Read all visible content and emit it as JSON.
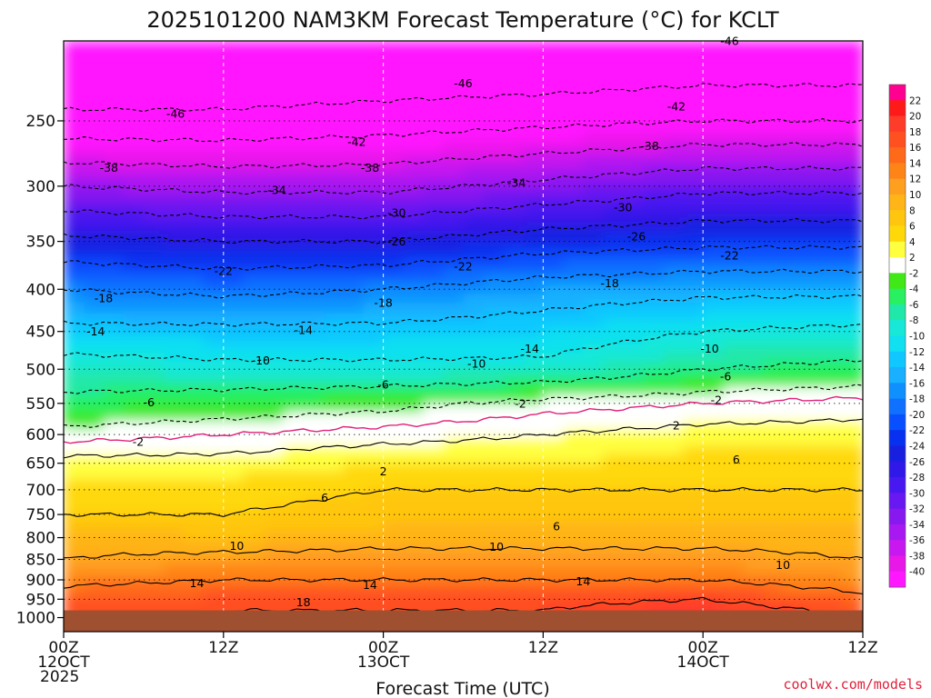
{
  "chart_data": {
    "type": "heatmap",
    "title": "2025101200 NAM3KM Forecast Temperature (°C) for KCLT",
    "xlabel": "Forecast Time (UTC)",
    "ylabel": "",
    "x_range_hours": [
      0,
      60
    ],
    "x_ticks": [
      {
        "hour": 0,
        "lines": [
          "00Z",
          "12OCT",
          "2025"
        ]
      },
      {
        "hour": 12,
        "lines": [
          "12Z"
        ]
      },
      {
        "hour": 24,
        "lines": [
          "00Z",
          "13OCT"
        ]
      },
      {
        "hour": 36,
        "lines": [
          "12Z"
        ]
      },
      {
        "hour": 48,
        "lines": [
          "00Z",
          "14OCT"
        ]
      },
      {
        "hour": 60,
        "lines": [
          "12Z"
        ]
      }
    ],
    "y_axis": {
      "scale": "log-pressure",
      "units": "hPa",
      "range": [
        1040,
        200
      ]
    },
    "y_ticks": [
      250,
      300,
      350,
      400,
      450,
      500,
      550,
      600,
      650,
      700,
      750,
      800,
      850,
      900,
      950,
      1000
    ],
    "ground_level_hpa": 980,
    "colorbar": {
      "tick_labels": [
        "22",
        "20",
        "18",
        "16",
        "14",
        "12",
        "10",
        "8",
        "6",
        "4",
        "2",
        "-2",
        "-4",
        "-6",
        "-8",
        "-10",
        "-12",
        "-14",
        "-16",
        "-18",
        "-20",
        "-22",
        "-24",
        "-26",
        "-28",
        "-30",
        "-32",
        "-34",
        "-36",
        "-38",
        "-40"
      ],
      "colors": [
        "#ff0090",
        "#ff1a1a",
        "#ff3c2a",
        "#ff5020",
        "#ff6a1a",
        "#ff8418",
        "#ff9f20",
        "#ffb418",
        "#ffc610",
        "#ffd80a",
        "#ffff40",
        "#ffffff",
        "#40e818",
        "#28f060",
        "#20e8a8",
        "#18e8d8",
        "#10e0f0",
        "#10c8ff",
        "#18b0ff",
        "#1090ff",
        "#1070ff",
        "#0850ff",
        "#0830f0",
        "#1820e0",
        "#3018e8",
        "#4818f0",
        "#6818f0",
        "#8818f0",
        "#a818f0",
        "#c818f0",
        "#e818e8",
        "#ff18ff"
      ]
    },
    "temperature_profile": {
      "levels_hpa": [
        200,
        250,
        300,
        350,
        400,
        450,
        500,
        550,
        600,
        650,
        700,
        750,
        800,
        850,
        900,
        950,
        980
      ],
      "hours": [
        0,
        12,
        24,
        36,
        48,
        60
      ],
      "values_c": [
        [
          -52,
          -52,
          -52,
          -52,
          -51,
          -51
        ],
        [
          -45,
          -45,
          -44,
          -43,
          -42,
          -42
        ],
        [
          -34,
          -35,
          -35,
          -33,
          -31,
          -31
        ],
        [
          -25,
          -26,
          -26,
          -24,
          -23,
          -23
        ],
        [
          -18,
          -19,
          -18,
          -16,
          -15,
          -15
        ],
        [
          -13,
          -13,
          -13,
          -12,
          -10,
          -9
        ],
        [
          -8,
          -9,
          -9,
          -9,
          -6,
          -5
        ],
        [
          -5,
          -4,
          -3,
          -1,
          0,
          1
        ],
        [
          -1,
          0,
          1,
          2,
          3,
          3
        ],
        [
          3,
          3,
          4,
          4,
          5,
          5
        ],
        [
          5,
          5,
          6,
          6,
          6,
          6
        ],
        [
          6,
          6,
          7,
          7,
          7,
          7
        ],
        [
          9,
          8,
          9,
          9,
          9,
          9
        ],
        [
          10,
          11,
          11,
          11,
          11,
          10
        ],
        [
          13,
          14,
          14,
          14,
          14,
          12
        ],
        [
          16,
          17,
          17,
          17,
          18,
          15
        ],
        [
          17,
          18,
          18,
          18,
          20,
          17
        ]
      ]
    },
    "contours": [
      {
        "value": "-46",
        "style": "dashed",
        "label_at": [
          {
            "h": 8.4,
            "p": 245
          },
          {
            "h": 30.0,
            "p": 225
          },
          {
            "h": 50.0,
            "p": 200
          }
        ]
      },
      {
        "value": "-42",
        "style": "dashed",
        "label_at": [
          {
            "h": 22.0,
            "p": 265
          },
          {
            "h": 46.0,
            "p": 240
          }
        ]
      },
      {
        "value": "-38",
        "style": "dashed",
        "label_at": [
          {
            "h": 3.4,
            "p": 285
          },
          {
            "h": 23.0,
            "p": 285
          },
          {
            "h": 44.0,
            "p": 268
          }
        ]
      },
      {
        "value": "-34",
        "style": "dashed",
        "label_at": [
          {
            "h": 16.0,
            "p": 303
          },
          {
            "h": 34.0,
            "p": 297
          }
        ]
      },
      {
        "value": "-30",
        "style": "dashed",
        "label_at": [
          {
            "h": 25.0,
            "p": 323
          },
          {
            "h": 42.0,
            "p": 318
          }
        ]
      },
      {
        "value": "-26",
        "style": "dashed",
        "label_at": [
          {
            "h": 25.0,
            "p": 350
          },
          {
            "h": 43.0,
            "p": 345
          }
        ]
      },
      {
        "value": "-22",
        "style": "dashed",
        "label_at": [
          {
            "h": 12.0,
            "p": 380
          },
          {
            "h": 30.0,
            "p": 375
          },
          {
            "h": 50.0,
            "p": 364
          }
        ]
      },
      {
        "value": "-18",
        "style": "dashed",
        "label_at": [
          {
            "h": 3.0,
            "p": 410
          },
          {
            "h": 24.0,
            "p": 415
          },
          {
            "h": 41.0,
            "p": 393
          }
        ]
      },
      {
        "value": "-14",
        "style": "dashed",
        "label_at": [
          {
            "h": 2.4,
            "p": 450
          },
          {
            "h": 18.0,
            "p": 448
          },
          {
            "h": 35.0,
            "p": 472
          }
        ]
      },
      {
        "value": "-10",
        "style": "dashed",
        "label_at": [
          {
            "h": 14.8,
            "p": 488
          },
          {
            "h": 31.0,
            "p": 492
          },
          {
            "h": 48.5,
            "p": 472
          }
        ]
      },
      {
        "value": "-6",
        "style": "dashed",
        "label_at": [
          {
            "h": 6.4,
            "p": 548
          },
          {
            "h": 24.0,
            "p": 522
          },
          {
            "h": 49.7,
            "p": 510
          }
        ]
      },
      {
        "value": "-2",
        "style": "dashed",
        "label_at": [
          {
            "h": 5.6,
            "p": 612
          },
          {
            "h": 34.3,
            "p": 550
          },
          {
            "h": 49.0,
            "p": 545
          }
        ]
      },
      {
        "value": "0",
        "style": "freezing",
        "label_at": []
      },
      {
        "value": "2",
        "style": "solid",
        "label_at": [
          {
            "h": 24.0,
            "p": 665
          },
          {
            "h": 46.0,
            "p": 585
          }
        ]
      },
      {
        "value": "6",
        "style": "solid",
        "label_at": [
          {
            "h": 19.6,
            "p": 715
          },
          {
            "h": 37.0,
            "p": 775
          },
          {
            "h": 50.5,
            "p": 643
          }
        ]
      },
      {
        "value": "10",
        "style": "solid",
        "label_at": [
          {
            "h": 13.0,
            "p": 818
          },
          {
            "h": 32.5,
            "p": 820
          },
          {
            "h": 54.0,
            "p": 863
          }
        ]
      },
      {
        "value": "14",
        "style": "solid",
        "label_at": [
          {
            "h": 10.0,
            "p": 908
          },
          {
            "h": 23.0,
            "p": 913
          },
          {
            "h": 39.0,
            "p": 903
          }
        ]
      },
      {
        "value": "18",
        "style": "solid",
        "label_at": [
          {
            "h": 18.0,
            "p": 958
          }
        ]
      }
    ],
    "annotations": [
      "coolwx.com/models"
    ]
  }
}
